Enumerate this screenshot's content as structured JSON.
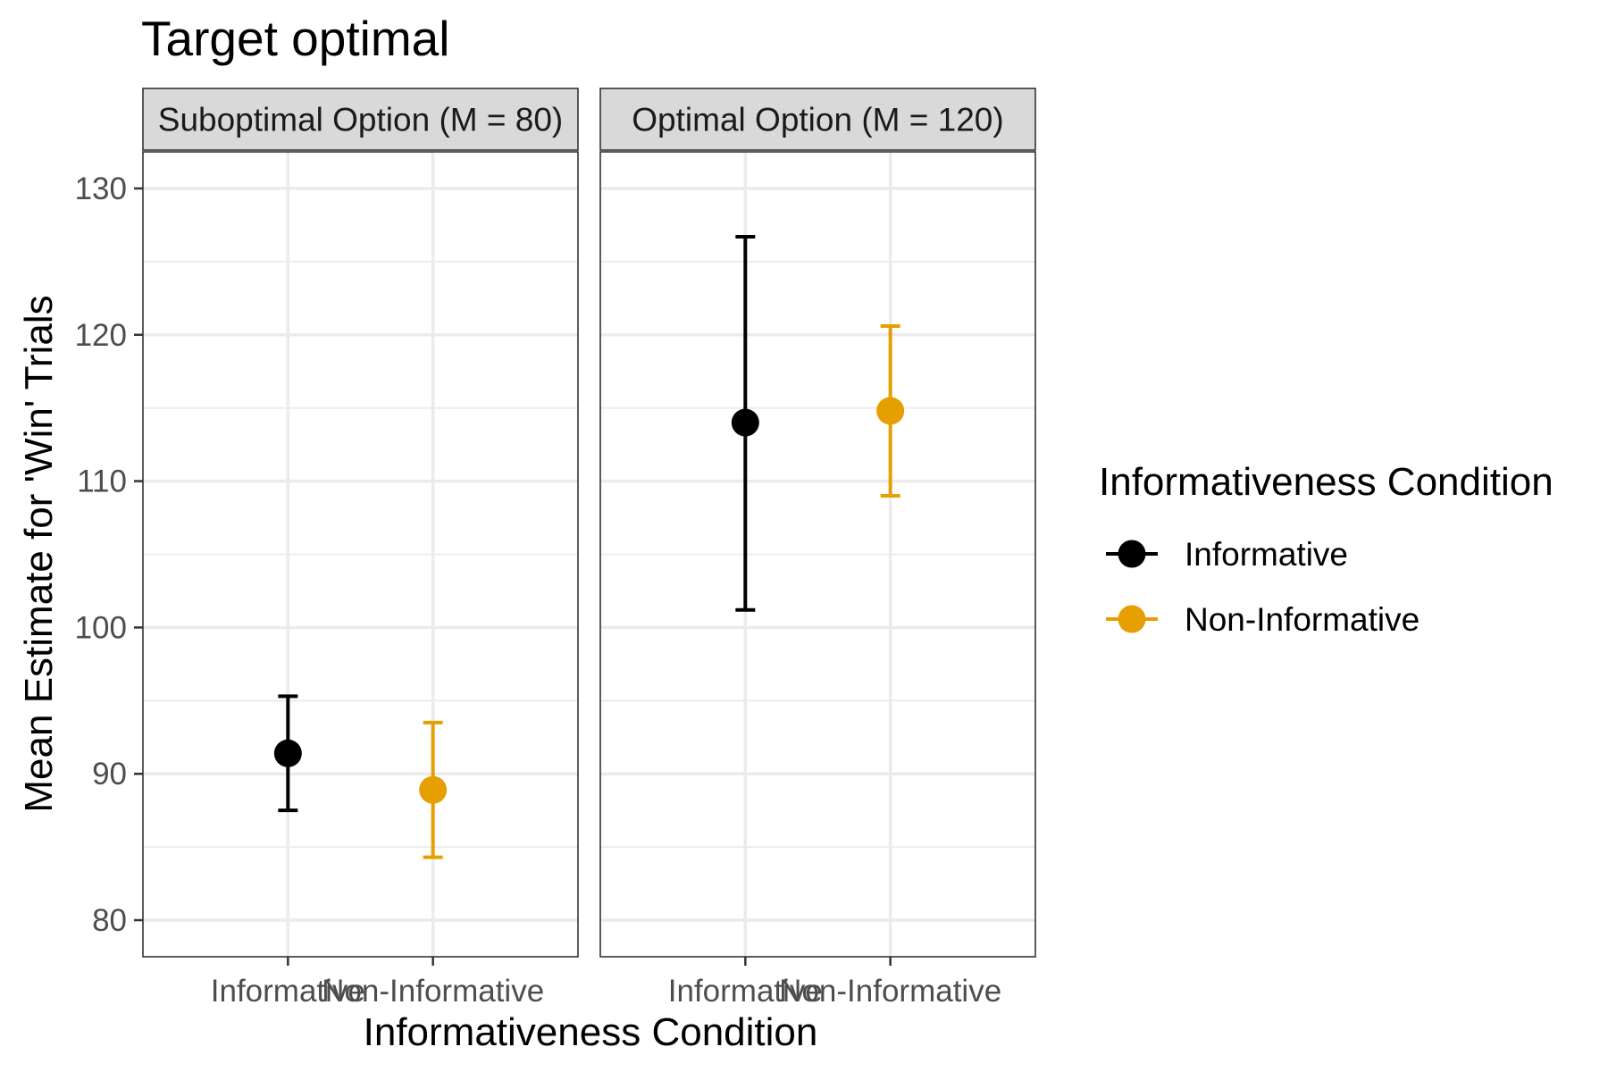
{
  "chart_data": {
    "type": "scatter",
    "title": "Target optimal",
    "xlabel": "Informativeness Condition",
    "ylabel": "Mean Estimate for 'Win' Trials",
    "ylim": [
      77.5,
      132.5
    ],
    "yticks": [
      80,
      90,
      100,
      110,
      120,
      130
    ],
    "grid": true,
    "categories": [
      "Informative",
      "Non-Informative"
    ],
    "panels": [
      {
        "label": "Suboptimal Option (M = 80)",
        "points": [
          {
            "category": "Informative",
            "mean": 91.4,
            "lower": 87.5,
            "upper": 95.3
          },
          {
            "category": "Non-Informative",
            "mean": 88.9,
            "lower": 84.3,
            "upper": 93.5
          }
        ]
      },
      {
        "label": "Optimal Option (M = 120)",
        "points": [
          {
            "category": "Informative",
            "mean": 114.0,
            "lower": 101.2,
            "upper": 126.7
          },
          {
            "category": "Non-Informative",
            "mean": 114.8,
            "lower": 109.0,
            "upper": 120.6
          }
        ]
      }
    ],
    "legend": {
      "title": "Informativeness Condition",
      "position": "right",
      "entries": [
        {
          "label": "Informative",
          "color": "#000000"
        },
        {
          "label": "Non-Informative",
          "color": "#E69F00"
        }
      ]
    }
  }
}
